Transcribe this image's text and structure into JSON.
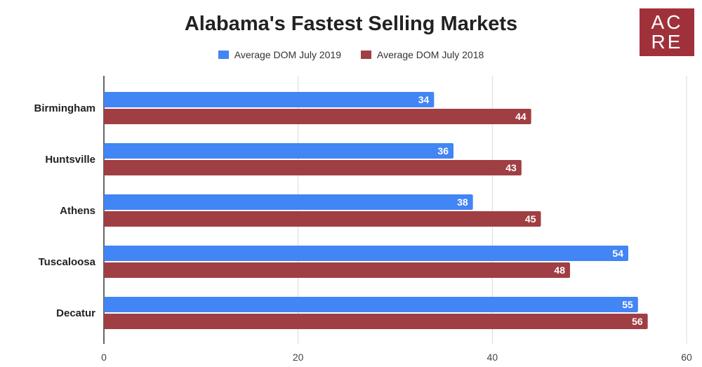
{
  "logo": {
    "line1": "AC",
    "line2": "RE"
  },
  "chart_data": {
    "type": "bar",
    "orientation": "horizontal",
    "title": "Alabama's Fastest Selling Markets",
    "categories": [
      "Birmingham",
      "Huntsville",
      "Athens",
      "Tuscaloosa",
      "Decatur"
    ],
    "series": [
      {
        "name": "Average DOM July 2019",
        "color": "#4285f4",
        "values": [
          34,
          36,
          38,
          54,
          55
        ]
      },
      {
        "name": "Average DOM July 2018",
        "color": "#a03f43",
        "values": [
          44,
          43,
          45,
          48,
          56
        ]
      }
    ],
    "xlim": [
      0,
      60
    ],
    "xticks": [
      0,
      20,
      40,
      60
    ],
    "grid": true,
    "legend_position": "top-center",
    "data_labels": true
  }
}
